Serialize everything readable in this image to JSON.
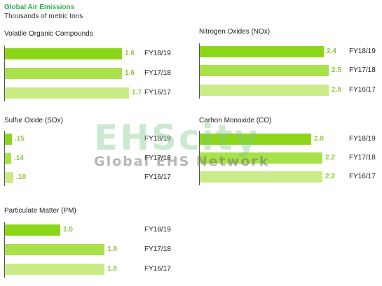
{
  "header": {
    "title": "Global Air Emissions",
    "subtitle": "Thousands of metric tons"
  },
  "watermark": {
    "main": "EHScity",
    "sub": "Global EHS Network"
  },
  "colors": {
    "FY18/19": "#8cd618",
    "FY17/18": "#a9e14a",
    "FY16/17": "#c9ec86",
    "value_text": "#8cc63f",
    "title": "#2db34a"
  },
  "chart_data": [
    {
      "type": "bar",
      "orientation": "horizontal",
      "title": "Volatile Organic Compounds",
      "categories": [
        "FY18/19",
        "FY17/18",
        "FY16/17"
      ],
      "values": [
        1.6,
        1.6,
        1.7
      ],
      "labels": [
        "1.6",
        "1.6",
        "1.7"
      ]
    },
    {
      "type": "bar",
      "orientation": "horizontal",
      "title": "Nitrogen Oxides (NOx)",
      "categories": [
        "FY18/19",
        "FY17/18",
        "FY16/17"
      ],
      "values": [
        2.4,
        2.5,
        2.5
      ],
      "labels": [
        "2.4",
        "2.5",
        "2.5"
      ]
    },
    {
      "type": "bar",
      "orientation": "horizontal",
      "title": "Sulfur Oxide (SOx)",
      "categories": [
        "FY18/19",
        "FY17/18",
        "FY16/17"
      ],
      "values": [
        0.15,
        0.14,
        0.18
      ],
      "labels": [
        ".15",
        ".14",
        ".18"
      ]
    },
    {
      "type": "bar",
      "orientation": "horizontal",
      "title": "Carbon Monoxide (CO)",
      "categories": [
        "FY18/19",
        "FY17/18",
        "FY16/17"
      ],
      "values": [
        2.0,
        2.2,
        2.2
      ],
      "labels": [
        "2.0",
        "2.2",
        "2.2"
      ]
    },
    {
      "type": "bar",
      "orientation": "horizontal",
      "title": "Particulate Matter (PM)",
      "categories": [
        "FY18/19",
        "FY17/18",
        "FY16/17"
      ],
      "values": [
        1.0,
        1.8,
        1.8
      ],
      "labels": [
        "1.0",
        "1.8",
        "1.8"
      ]
    }
  ]
}
